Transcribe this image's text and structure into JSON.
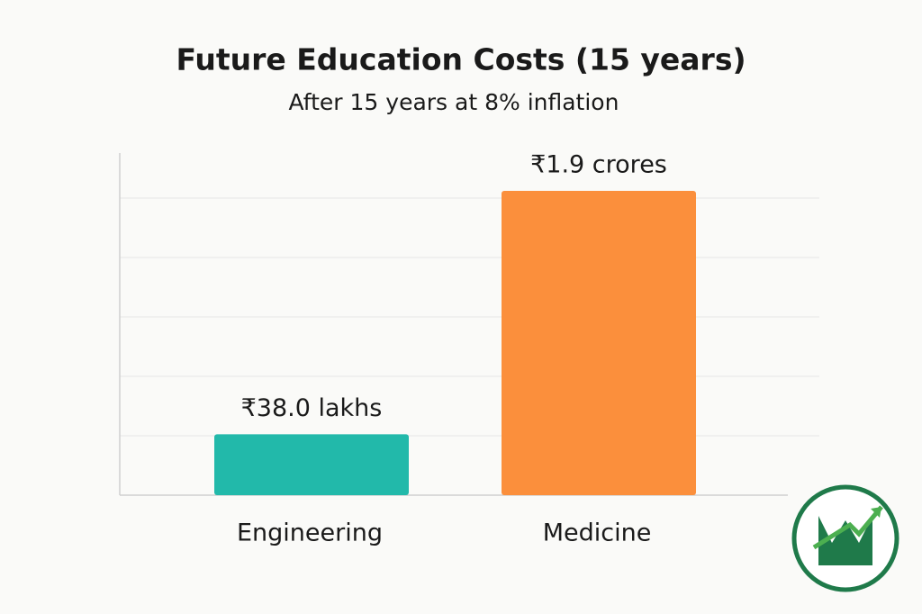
{
  "chart_data": {
    "type": "bar",
    "title": "Future Education Costs (15 years)",
    "subtitle": "After 15 years at 8% inflation",
    "categories": [
      "Engineering",
      "Medicine"
    ],
    "values": [
      3800000,
      19000000
    ],
    "value_labels": [
      "₹38.0 lakhs",
      "₹1.9 crores"
    ],
    "colors": [
      "#22b9aa",
      "#fb8f3c"
    ],
    "grid": true
  }
}
